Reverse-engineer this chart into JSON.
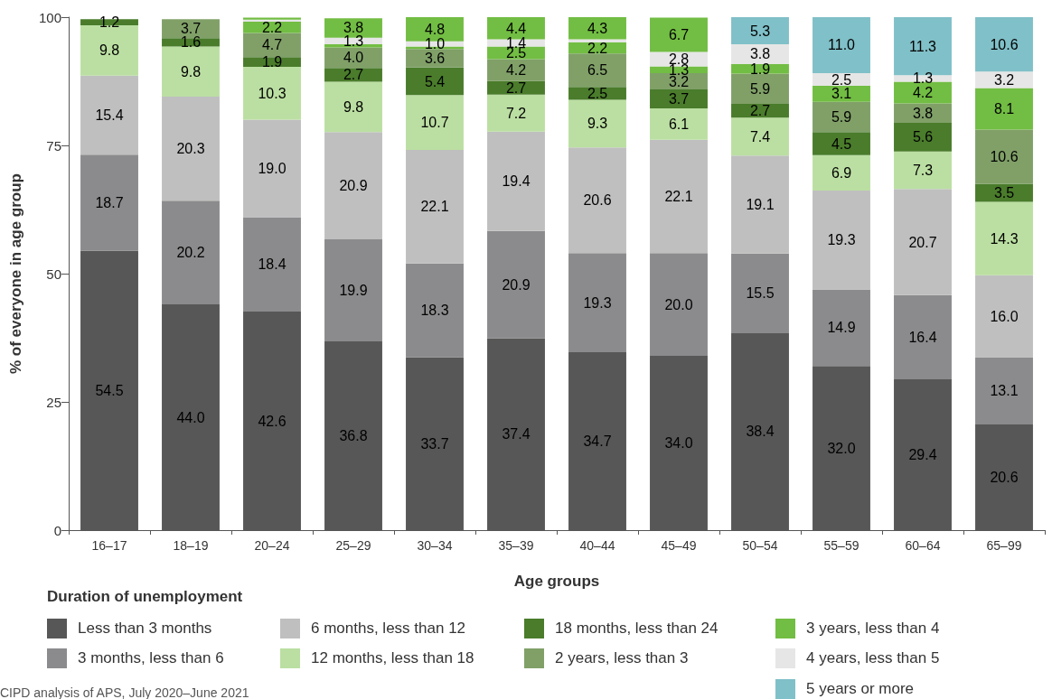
{
  "chart_data": {
    "type": "bar",
    "stacked": true,
    "categories": [
      "16–17",
      "18–19",
      "20–24",
      "25–29",
      "30–34",
      "35–39",
      "40–44",
      "45–49",
      "50–54",
      "55–59",
      "60–64",
      "65–99"
    ],
    "xlabel": "Age groups",
    "ylabel": "% of everyone in age group",
    "legend_title": "Duration of unemployment",
    "ylim": [
      0,
      100
    ],
    "yticks": [
      0,
      25,
      50,
      75,
      100
    ],
    "grid": false,
    "legend": "bottom",
    "annotations": [
      "CIPD analysis of APS, July 2020–June 2021"
    ],
    "series": [
      {
        "name": "Less than 3 months",
        "color": "#575757",
        "values": [
          54.5,
          44.0,
          42.6,
          36.8,
          33.7,
          37.4,
          34.7,
          34.0,
          38.4,
          32.0,
          29.4,
          20.6
        ],
        "value_labels": [
          "54.5",
          "44.0",
          "42.6",
          "36.8",
          "33.7",
          "37.4",
          "34.7",
          "34.0",
          "38.4",
          "32.0",
          "29.4",
          "20.6"
        ]
      },
      {
        "name": "3 months, less than 6",
        "color": "#8b8b8d",
        "values": [
          18.7,
          20.2,
          18.4,
          19.9,
          18.3,
          20.9,
          19.3,
          20.0,
          15.5,
          14.9,
          16.4,
          13.1
        ],
        "value_labels": [
          "18.7",
          "20.2",
          "18.4",
          "19.9",
          "18.3",
          "20.9",
          "19.3",
          "20.0",
          "15.5",
          "14.9",
          "16.4",
          "13.1"
        ]
      },
      {
        "name": "6 months, less than 12",
        "color": "#bfbfbf",
        "values": [
          15.4,
          20.3,
          19.0,
          20.9,
          22.1,
          19.4,
          20.6,
          22.1,
          19.1,
          19.3,
          20.7,
          16.0
        ],
        "value_labels": [
          "15.4",
          "20.3",
          "19.0",
          "20.9",
          "22.1",
          "19.4",
          "20.6",
          "22.1",
          "19.1",
          "19.3",
          "20.7",
          "16.0"
        ]
      },
      {
        "name": "12 months, less than 18",
        "color": "#bbdfa2",
        "values": [
          9.8,
          9.8,
          10.3,
          9.8,
          10.7,
          7.2,
          9.3,
          6.1,
          7.4,
          6.9,
          7.3,
          14.3
        ],
        "value_labels": [
          "9.8",
          "9.8",
          "10.3",
          "9.8",
          "10.7",
          "7.2",
          "9.3",
          "6.1",
          "7.4",
          "6.9",
          "7.3",
          "14.3"
        ]
      },
      {
        "name": "18 months, less than 24",
        "color": "#4a7c2b",
        "values": [
          1.2,
          1.6,
          1.9,
          2.7,
          5.4,
          2.7,
          2.5,
          3.7,
          2.7,
          4.5,
          5.6,
          3.5
        ],
        "value_labels": [
          "1.2",
          "1.6",
          "1.9",
          "2.7",
          "5.4",
          "2.7",
          "2.5",
          "3.7",
          "2.7",
          "4.5",
          "5.6",
          "3.5"
        ]
      },
      {
        "name": "2 years, less than 3",
        "color": "#80a068",
        "values": [
          null,
          3.7,
          4.7,
          4.0,
          3.6,
          4.2,
          6.5,
          3.2,
          5.9,
          5.9,
          3.8,
          10.6
        ],
        "value_labels": [
          null,
          "3.7",
          "4.7",
          "4.0",
          "3.6",
          "4.2",
          "6.5",
          "3.2",
          "5.9",
          "5.9",
          "3.8",
          "10.6"
        ]
      },
      {
        "name": "3 years, less than 4",
        "color": "#72bd43",
        "values": [
          null,
          null,
          2.2,
          0.6,
          0.5,
          2.5,
          2.2,
          1.3,
          1.9,
          3.1,
          4.2,
          8.1
        ],
        "value_labels": [
          null,
          null,
          "2.2",
          null,
          null,
          "2.5",
          "2.2",
          "1.3",
          "1.9",
          "3.1",
          "4.2",
          "8.1"
        ]
      },
      {
        "name": "4 years, less than 5",
        "color": "#e6e6e6",
        "values": [
          null,
          null,
          0.4,
          1.3,
          1.0,
          1.4,
          0.6,
          2.8,
          3.8,
          2.5,
          1.3,
          3.2
        ],
        "value_labels": [
          null,
          null,
          null,
          "1.3",
          "1.0",
          "1.4",
          null,
          "2.8",
          "3.8",
          "2.5",
          "1.3",
          "3.2"
        ]
      },
      {
        "color": "#72bd43",
        "values": [
          null,
          null,
          0.4,
          3.8,
          4.8,
          4.4,
          4.3,
          6.7,
          null,
          null,
          null,
          null
        ],
        "value_labels": [
          null,
          null,
          null,
          "3.8",
          "4.8",
          "4.4",
          "4.3",
          "6.7",
          null,
          null,
          null,
          null
        ]
      },
      {
        "name": "5 years or more",
        "color": "#80c0c8",
        "values": [
          null,
          null,
          null,
          null,
          null,
          null,
          null,
          null,
          5.3,
          11.0,
          11.3,
          10.6
        ],
        "value_labels": [
          null,
          null,
          null,
          null,
          null,
          null,
          null,
          null,
          "5.3",
          "11.0",
          "11.3",
          "10.6"
        ]
      }
    ]
  }
}
